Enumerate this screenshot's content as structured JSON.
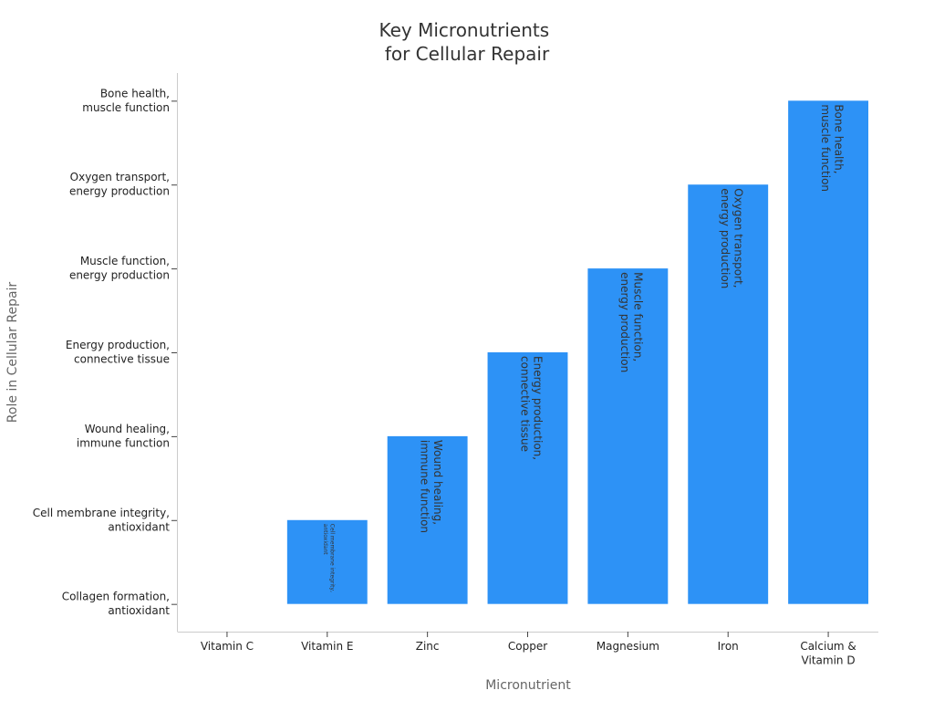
{
  "chart_data": {
    "type": "bar",
    "title_lines": [
      "Key Micronutrients",
      "for Cellular Repair"
    ],
    "xlabel": "Micronutrient",
    "ylabel": "Role in Cellular Repair",
    "categories": [
      [
        "Vitamin C"
      ],
      [
        "Vitamin E"
      ],
      [
        "Zinc"
      ],
      [
        "Copper"
      ],
      [
        "Magnesium"
      ],
      [
        "Iron"
      ],
      [
        "Calcium &",
        "Vitamin D"
      ]
    ],
    "y_ticks": [
      [
        "Collagen formation,",
        "antioxidant"
      ],
      [
        "Cell membrane integrity,",
        "antioxidant"
      ],
      [
        "Wound healing,",
        "immune function"
      ],
      [
        "Energy production,",
        "connective tissue"
      ],
      [
        "Muscle function,",
        "energy production"
      ],
      [
        "Oxygen transport,",
        "energy production"
      ],
      [
        "Bone health,",
        "muscle function"
      ]
    ],
    "values": [
      0,
      1,
      2,
      3,
      4,
      5,
      6
    ],
    "bar_labels": [
      [],
      [
        "Cell membrane integrity,",
        "antioxidant"
      ],
      [
        "Wound healing,",
        "immune function"
      ],
      [
        "Energy production,",
        "connective tissue"
      ],
      [
        "Muscle function,",
        "energy production"
      ],
      [
        "Oxygen transport,",
        "energy production"
      ],
      [
        "Bone health,",
        "muscle function"
      ]
    ],
    "bar_color": "#2d92f6",
    "ylim": [
      -0.33,
      6.33
    ],
    "grid": false,
    "legend": "none"
  }
}
